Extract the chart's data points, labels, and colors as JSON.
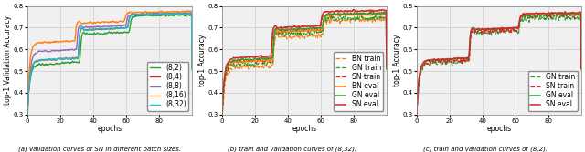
{
  "fig_width": 6.4,
  "fig_height": 1.67,
  "dpi": 100,
  "ylim": [
    0.3,
    0.8
  ],
  "xlim": [
    0,
    100
  ],
  "xticks": [
    0,
    20,
    40,
    60,
    80
  ],
  "yticks": [
    0.3,
    0.4,
    0.5,
    0.6,
    0.7,
    0.8
  ],
  "ylabel_a": "top-1 Validation Accuracy",
  "ylabel_bc": "top-1 Accuracy",
  "xlabel": "epochs",
  "caption_a": "(a) validation curves of SN in different batch sizes.",
  "caption_b": "(b) train and validation curves of (8,32).",
  "caption_c": "(c) train and validation curves of (8,2).",
  "colors_a": {
    "(8,2)": "#2ca02c",
    "(8,4)": "#d62728",
    "(8,8)": "#9467bd",
    "(8,16)": "#ff7f0e",
    "(8,32)": "#17becf"
  },
  "colors_bc": {
    "BN": "#ff7f0e",
    "GN": "#2ca02c",
    "SN": "#d62728"
  },
  "grid_color": "#cccccc",
  "bg_color": "#f0f0f0",
  "legend_fontsize": 5.5,
  "axis_fontsize": 5.5,
  "tick_fontsize": 5.0,
  "caption_fontsize": 5.0
}
